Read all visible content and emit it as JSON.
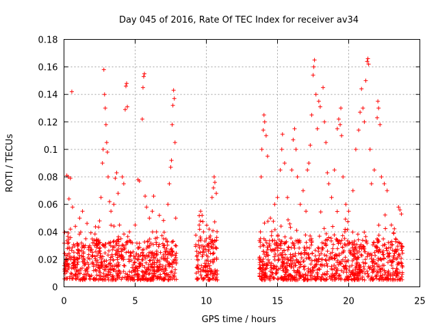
{
  "chart_data": {
    "type": "scatter",
    "title": "Day 045 of 2016, Rate Of TEC Index for receiver av34",
    "xlabel": "GPS time / hours",
    "ylabel": "ROTI / TECUs",
    "xlim": [
      0,
      25
    ],
    "ylim": [
      0,
      0.18
    ],
    "grid": true,
    "marker": "+",
    "color": "#ff0000",
    "xticks": [
      0,
      5,
      10,
      15,
      20,
      25
    ],
    "xtick_labels": [
      "0",
      "5",
      "10",
      "15",
      "20",
      "25"
    ],
    "yticks": [
      0,
      0.02,
      0.04,
      0.06,
      0.08,
      0.1,
      0.12,
      0.14,
      0.16,
      0.18
    ],
    "ytick_labels": [
      "0",
      "0.02",
      "0.04",
      "0.06",
      "0.08",
      "0.1",
      "0.12",
      "0.14",
      "0.16",
      "0.18"
    ],
    "series": [
      {
        "name": "ROTI",
        "points": [
          [
            0.1,
            0.012
          ],
          [
            0.2,
            0.081
          ],
          [
            0.3,
            0.08
          ],
          [
            0.35,
            0.064
          ],
          [
            0.45,
            0.079
          ],
          [
            0.55,
            0.142
          ],
          [
            0.6,
            0.058
          ],
          [
            0.8,
            0.044
          ],
          [
            1.1,
            0.05
          ],
          [
            1.3,
            0.055
          ],
          [
            1.5,
            0.03
          ],
          [
            1.8,
            0.03
          ],
          [
            2.0,
            0.025
          ],
          [
            2.3,
            0.03
          ],
          [
            2.5,
            0.048
          ],
          [
            2.6,
            0.065
          ],
          [
            2.7,
            0.09
          ],
          [
            2.75,
            0.1
          ],
          [
            2.8,
            0.158
          ],
          [
            2.85,
            0.14
          ],
          [
            2.9,
            0.13
          ],
          [
            2.95,
            0.118
          ],
          [
            3.0,
            0.105
          ],
          [
            3.05,
            0.098
          ],
          [
            3.1,
            0.08
          ],
          [
            3.2,
            0.062
          ],
          [
            3.3,
            0.055
          ],
          [
            3.5,
            0.06
          ],
          [
            3.6,
            0.079
          ],
          [
            3.7,
            0.083
          ],
          [
            3.8,
            0.068
          ],
          [
            3.9,
            0.045
          ],
          [
            4.0,
            0.035
          ],
          [
            4.1,
            0.08
          ],
          [
            4.2,
            0.075
          ],
          [
            4.3,
            0.129
          ],
          [
            4.35,
            0.146
          ],
          [
            4.4,
            0.148
          ],
          [
            4.45,
            0.131
          ],
          [
            4.6,
            0.04
          ],
          [
            4.8,
            0.032
          ],
          [
            5.0,
            0.045
          ],
          [
            5.2,
            0.078
          ],
          [
            5.3,
            0.077
          ],
          [
            5.5,
            0.122
          ],
          [
            5.55,
            0.145
          ],
          [
            5.6,
            0.153
          ],
          [
            5.65,
            0.155
          ],
          [
            5.7,
            0.066
          ],
          [
            5.8,
            0.058
          ],
          [
            6.0,
            0.05
          ],
          [
            6.2,
            0.055
          ],
          [
            6.3,
            0.066
          ],
          [
            6.5,
            0.04
          ],
          [
            6.7,
            0.052
          ],
          [
            7.0,
            0.035
          ],
          [
            7.3,
            0.06
          ],
          [
            7.4,
            0.075
          ],
          [
            7.5,
            0.087
          ],
          [
            7.55,
            0.092
          ],
          [
            7.6,
            0.118
          ],
          [
            7.65,
            0.132
          ],
          [
            7.7,
            0.143
          ],
          [
            7.75,
            0.137
          ],
          [
            7.8,
            0.105
          ],
          [
            7.85,
            0.05
          ],
          [
            9.4,
            0.02
          ],
          [
            9.5,
            0.045
          ],
          [
            9.6,
            0.055
          ],
          [
            9.7,
            0.052
          ],
          [
            9.8,
            0.04
          ],
          [
            10.0,
            0.035
          ],
          [
            10.2,
            0.042
          ],
          [
            10.4,
            0.065
          ],
          [
            10.5,
            0.072
          ],
          [
            10.55,
            0.08
          ],
          [
            10.6,
            0.076
          ],
          [
            10.7,
            0.068
          ],
          [
            13.8,
            0.04
          ],
          [
            13.85,
            0.08
          ],
          [
            13.9,
            0.1
          ],
          [
            14.0,
            0.114
          ],
          [
            14.05,
            0.125
          ],
          [
            14.1,
            0.12
          ],
          [
            14.2,
            0.11
          ],
          [
            14.3,
            0.095
          ],
          [
            14.5,
            0.05
          ],
          [
            14.8,
            0.06
          ],
          [
            15.0,
            0.065
          ],
          [
            15.2,
            0.085
          ],
          [
            15.3,
            0.1
          ],
          [
            15.35,
            0.111
          ],
          [
            15.5,
            0.09
          ],
          [
            15.7,
            0.065
          ],
          [
            16.0,
            0.085
          ],
          [
            16.1,
            0.107
          ],
          [
            16.2,
            0.115
          ],
          [
            16.3,
            0.1
          ],
          [
            16.4,
            0.08
          ],
          [
            16.6,
            0.06
          ],
          [
            16.8,
            0.07
          ],
          [
            17.0,
            0.055
          ],
          [
            17.1,
            0.085
          ],
          [
            17.2,
            0.09
          ],
          [
            17.3,
            0.103
          ],
          [
            17.4,
            0.125
          ],
          [
            17.5,
            0.154
          ],
          [
            17.55,
            0.16
          ],
          [
            17.6,
            0.165
          ],
          [
            17.7,
            0.14
          ],
          [
            17.8,
            0.115
          ],
          [
            17.9,
            0.135
          ],
          [
            18.0,
            0.131
          ],
          [
            18.2,
            0.145
          ],
          [
            18.3,
            0.12
          ],
          [
            18.4,
            0.105
          ],
          [
            18.5,
            0.083
          ],
          [
            18.6,
            0.075
          ],
          [
            18.8,
            0.065
          ],
          [
            19.0,
            0.085
          ],
          [
            19.2,
            0.115
          ],
          [
            19.3,
            0.122
          ],
          [
            19.4,
            0.118
          ],
          [
            19.45,
            0.13
          ],
          [
            19.5,
            0.11
          ],
          [
            19.6,
            0.08
          ],
          [
            19.8,
            0.06
          ],
          [
            20.0,
            0.055
          ],
          [
            20.3,
            0.07
          ],
          [
            20.5,
            0.1
          ],
          [
            20.7,
            0.114
          ],
          [
            20.8,
            0.127
          ],
          [
            20.9,
            0.144
          ],
          [
            21.0,
            0.13
          ],
          [
            21.1,
            0.12
          ],
          [
            21.2,
            0.15
          ],
          [
            21.3,
            0.164
          ],
          [
            21.35,
            0.166
          ],
          [
            21.4,
            0.162
          ],
          [
            21.5,
            0.1
          ],
          [
            21.6,
            0.075
          ],
          [
            21.8,
            0.085
          ],
          [
            22.0,
            0.123
          ],
          [
            22.05,
            0.135
          ],
          [
            22.1,
            0.13
          ],
          [
            22.2,
            0.118
          ],
          [
            22.3,
            0.08
          ],
          [
            22.5,
            0.075
          ],
          [
            22.7,
            0.07
          ],
          [
            23.0,
            0.045
          ],
          [
            23.3,
            0.035
          ],
          [
            23.5,
            0.058
          ],
          [
            23.6,
            0.056
          ],
          [
            23.7,
            0.053
          ]
        ],
        "density_note": "dense base-level scatter, ~0.005-0.035 TECU, in windows 0-7.9 h, 9.2-10.8 h, 13.7-23.8 h",
        "active_windows_hours": [
          [
            0.0,
            7.9
          ],
          [
            9.2,
            10.8
          ],
          [
            13.7,
            23.8
          ]
        ],
        "base_level_range": [
          0.005,
          0.035
        ]
      }
    ]
  }
}
